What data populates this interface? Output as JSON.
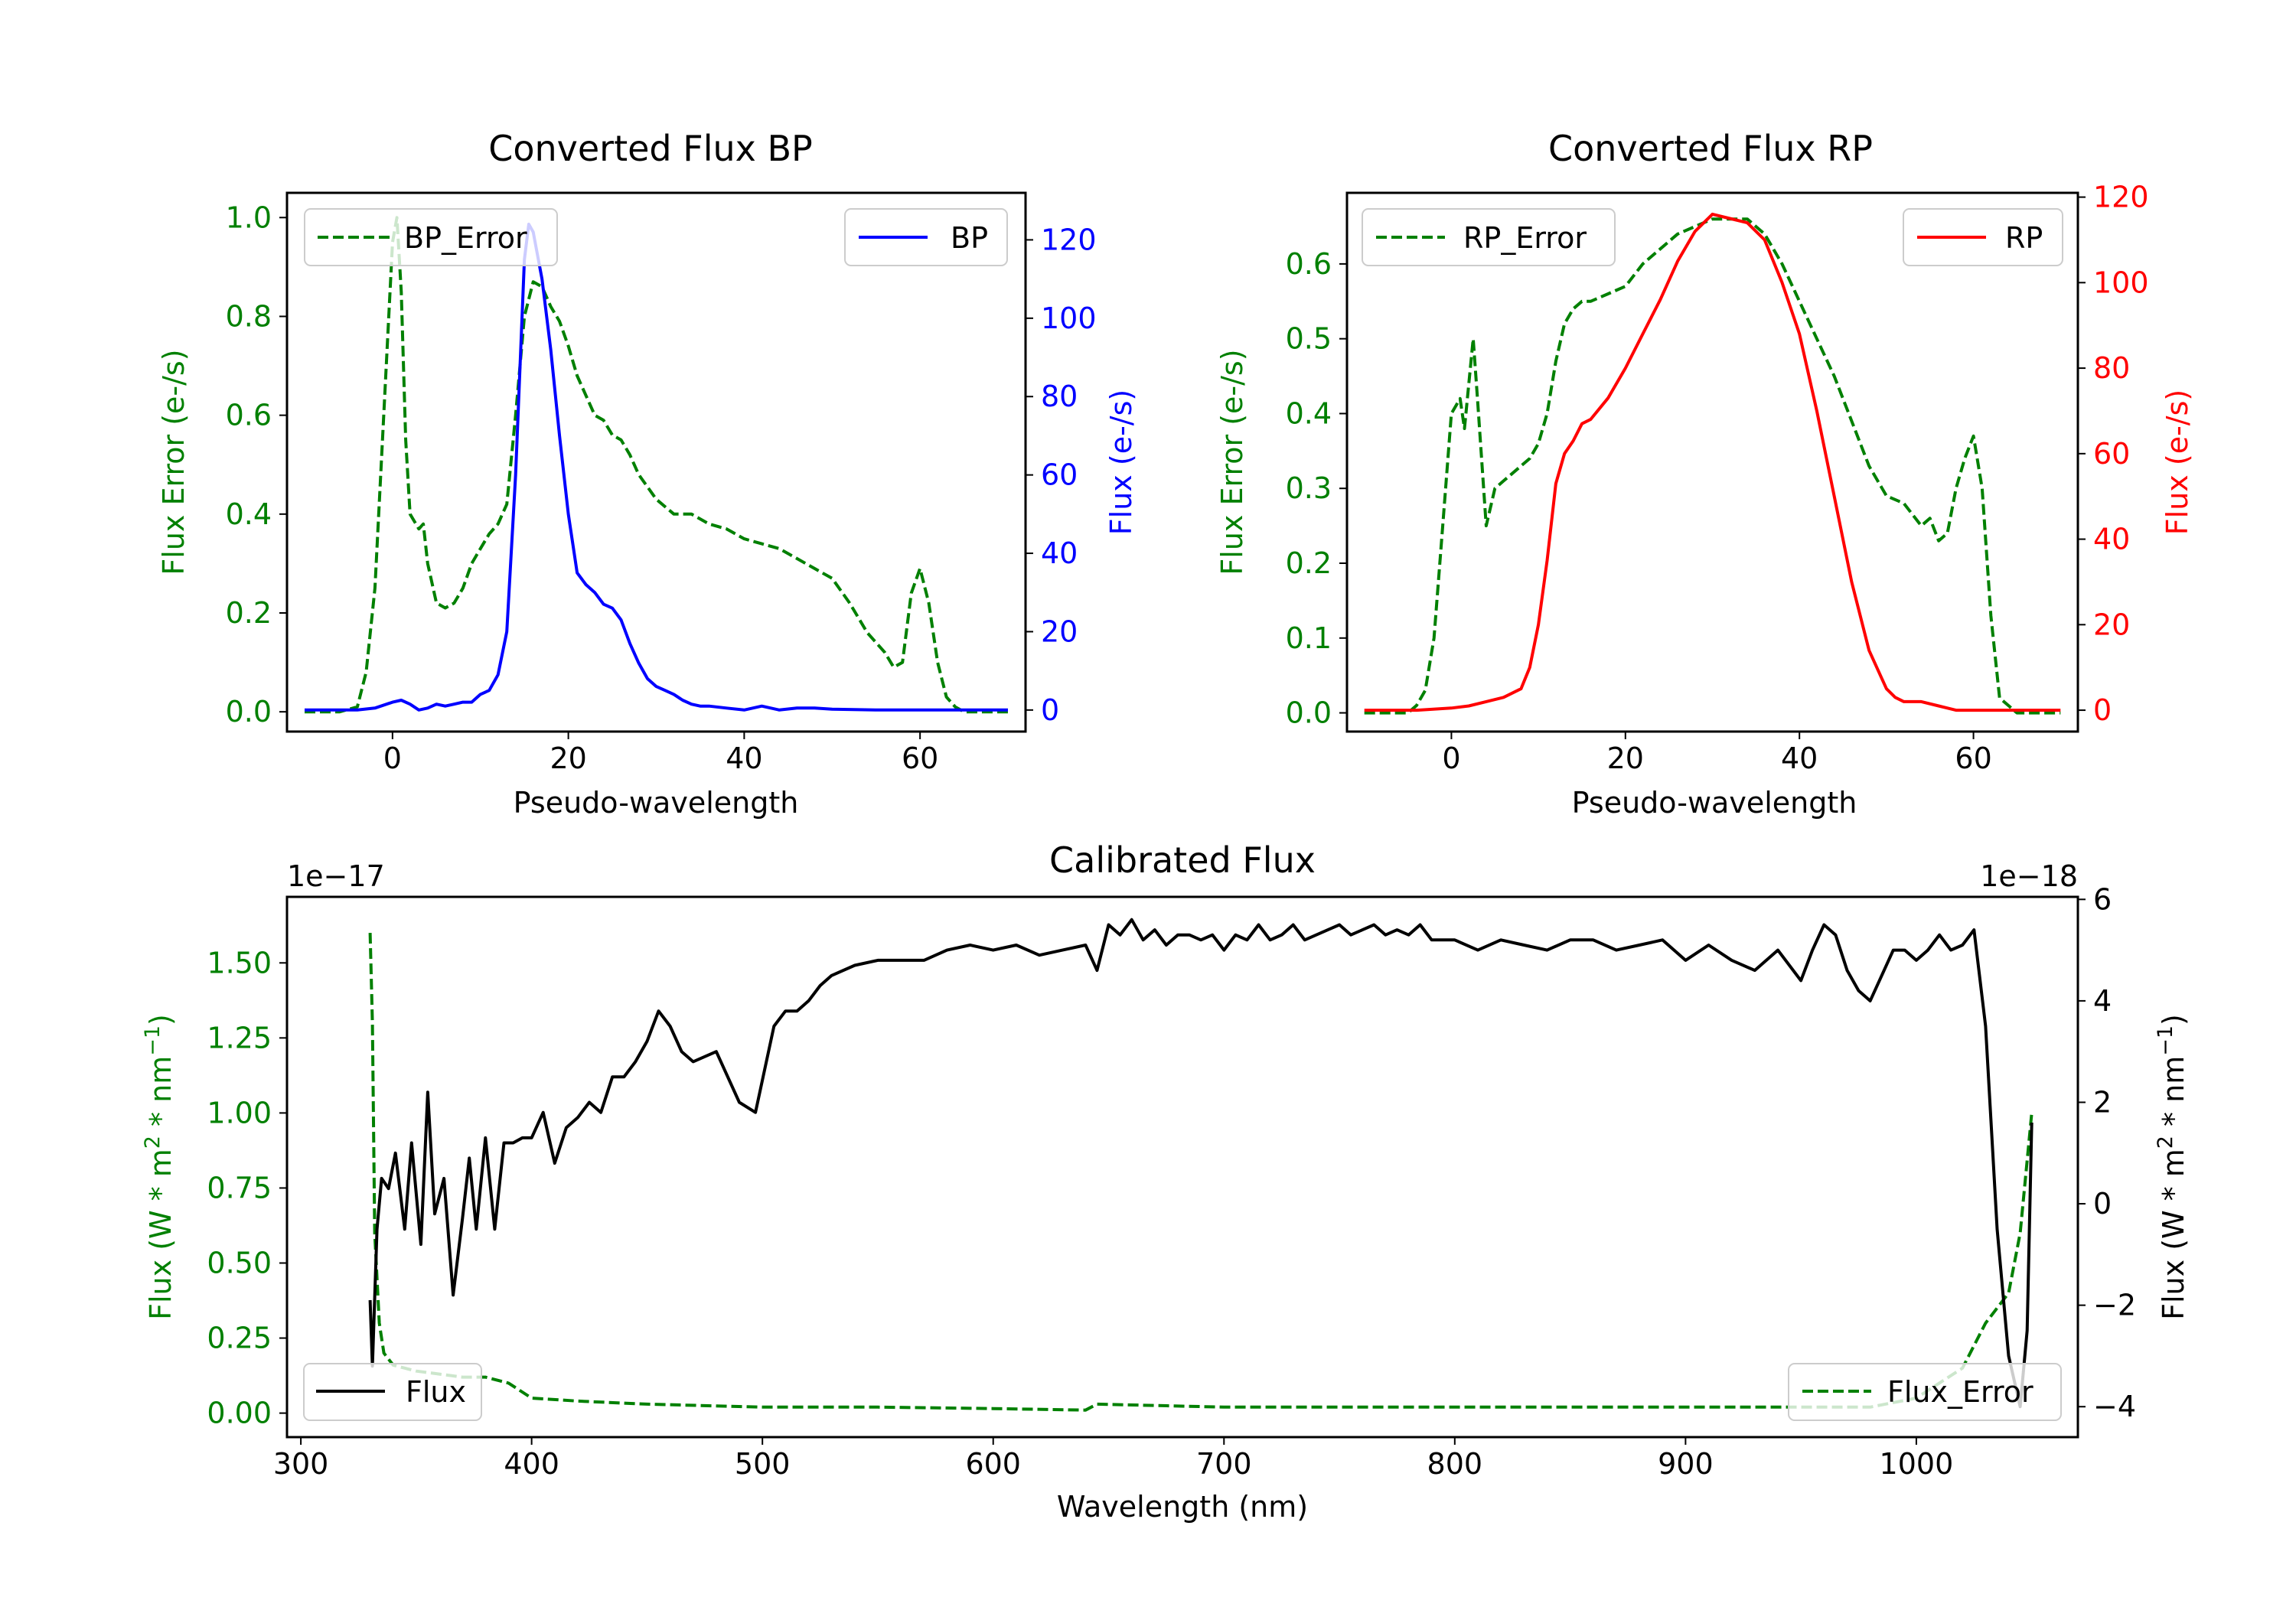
{
  "colors": {
    "green": "#008000",
    "blue": "#0000ff",
    "red": "#ff0000",
    "black": "#000000"
  },
  "chart_data": [
    {
      "id": "bp",
      "type": "line",
      "title": "Converted Flux BP",
      "xlabel": "Pseudo-wavelength",
      "ylabel_left": "Flux Error (e-/s)",
      "ylabel_right": "Flux (e-/s)",
      "xlim": [
        -12,
        72
      ],
      "ylim_left": [
        -0.04,
        1.05
      ],
      "ylim_right": [
        -5.5,
        132
      ],
      "xticks": [
        "0",
        "20",
        "40",
        "60"
      ],
      "yticks_left": [
        "0.0",
        "0.2",
        "0.4",
        "0.6",
        "0.8",
        "1.0"
      ],
      "yticks_right": [
        "0",
        "20",
        "40",
        "60",
        "80",
        "100",
        "120"
      ],
      "legend_left": "BP_Error",
      "legend_right": "BP",
      "series": [
        {
          "name": "BP_Error",
          "axis": "left",
          "style": "dashed",
          "color": "green",
          "x": [
            -10,
            -6,
            -4,
            -3,
            -2,
            -1,
            0,
            0.5,
            1,
            1.5,
            2,
            3,
            3.5,
            4,
            5,
            6,
            7,
            8,
            9,
            10,
            11,
            12,
            13,
            14,
            15,
            16,
            17,
            18,
            19,
            20,
            21,
            22,
            23,
            24,
            25,
            26,
            27,
            28,
            30,
            32,
            34,
            36,
            38,
            40,
            42,
            44,
            46,
            48,
            50,
            52,
            54,
            56,
            57,
            58,
            59,
            60,
            61,
            62,
            63,
            64,
            65,
            70
          ],
          "y": [
            0,
            0,
            0.01,
            0.08,
            0.25,
            0.6,
            0.95,
            1.0,
            0.85,
            0.55,
            0.4,
            0.37,
            0.38,
            0.3,
            0.22,
            0.21,
            0.22,
            0.25,
            0.3,
            0.33,
            0.36,
            0.38,
            0.42,
            0.6,
            0.8,
            0.87,
            0.86,
            0.82,
            0.79,
            0.74,
            0.68,
            0.64,
            0.6,
            0.59,
            0.56,
            0.55,
            0.52,
            0.48,
            0.43,
            0.4,
            0.4,
            0.38,
            0.37,
            0.35,
            0.34,
            0.33,
            0.31,
            0.29,
            0.27,
            0.22,
            0.16,
            0.12,
            0.09,
            0.1,
            0.24,
            0.29,
            0.22,
            0.1,
            0.03,
            0.01,
            0,
            0
          ]
        },
        {
          "name": "BP",
          "axis": "right",
          "style": "solid",
          "color": "blue",
          "x": [
            -10,
            -6,
            -4,
            -2,
            0,
            1,
            2,
            3,
            4,
            5,
            6,
            7,
            8,
            9,
            10,
            11,
            12,
            13,
            14,
            15,
            15.5,
            16,
            17,
            18,
            19,
            20,
            21,
            22,
            23,
            24,
            25,
            26,
            27,
            28,
            29,
            30,
            31,
            32,
            33,
            34,
            35,
            36,
            38,
            40,
            42,
            44,
            46,
            48,
            50,
            55,
            60,
            65,
            70
          ],
          "y": [
            0,
            0,
            0,
            0.5,
            2,
            2.5,
            1.5,
            0,
            0.5,
            1.5,
            1,
            1.5,
            2,
            2,
            4,
            5,
            9,
            20,
            60,
            115,
            124,
            122,
            110,
            92,
            70,
            50,
            35,
            32,
            30,
            27,
            26,
            23,
            17,
            12,
            8,
            6,
            5,
            4,
            2.5,
            1.5,
            1,
            1,
            0.5,
            0,
            1,
            0,
            0.5,
            0.5,
            0.2,
            0,
            0,
            0,
            0
          ]
        }
      ]
    },
    {
      "id": "rp",
      "type": "line",
      "title": "Converted Flux RP",
      "xlabel": "Pseudo-wavelength",
      "ylabel_left": "Flux Error (e-/s)",
      "ylabel_right": "Flux (e-/s)",
      "xlim": [
        -12,
        72
      ],
      "ylim_left": [
        -0.025,
        0.695
      ],
      "ylim_right": [
        -5,
        121
      ],
      "xticks": [
        "0",
        "20",
        "40",
        "60"
      ],
      "yticks_left": [
        "0.0",
        "0.1",
        "0.2",
        "0.3",
        "0.4",
        "0.5",
        "0.6"
      ],
      "yticks_right": [
        "0",
        "20",
        "40",
        "60",
        "80",
        "100",
        "120"
      ],
      "legend_left": "RP_Error",
      "legend_right": "RP",
      "series": [
        {
          "name": "RP_Error",
          "axis": "left",
          "style": "dashed",
          "color": "green",
          "x": [
            -10,
            -5,
            -4,
            -3,
            -2,
            -1,
            0,
            1,
            1.5,
            2,
            2.5,
            3,
            4,
            5,
            6,
            7,
            8,
            9,
            10,
            11,
            12,
            13,
            14,
            15,
            16,
            18,
            20,
            22,
            24,
            26,
            28,
            30,
            32,
            34,
            36,
            38,
            40,
            42,
            44,
            46,
            48,
            50,
            52,
            54,
            55,
            56,
            57,
            58,
            59,
            60,
            61,
            62,
            63,
            65,
            70
          ],
          "y": [
            0,
            0,
            0.01,
            0.03,
            0.1,
            0.25,
            0.4,
            0.42,
            0.38,
            0.44,
            0.5,
            0.42,
            0.25,
            0.3,
            0.31,
            0.32,
            0.33,
            0.34,
            0.36,
            0.4,
            0.47,
            0.52,
            0.54,
            0.55,
            0.55,
            0.56,
            0.57,
            0.6,
            0.62,
            0.64,
            0.65,
            0.66,
            0.66,
            0.66,
            0.64,
            0.6,
            0.55,
            0.5,
            0.45,
            0.39,
            0.33,
            0.29,
            0.28,
            0.25,
            0.26,
            0.23,
            0.24,
            0.3,
            0.34,
            0.37,
            0.3,
            0.13,
            0.02,
            0,
            0
          ]
        },
        {
          "name": "RP",
          "axis": "right",
          "style": "solid",
          "color": "red",
          "x": [
            -10,
            -4,
            0,
            2,
            4,
            6,
            8,
            9,
            10,
            11,
            12,
            13,
            14,
            15,
            16,
            18,
            20,
            22,
            24,
            26,
            28,
            30,
            32,
            34,
            36,
            38,
            40,
            42,
            44,
            46,
            48,
            50,
            51,
            52,
            54,
            56,
            58,
            60,
            65,
            70
          ],
          "y": [
            0,
            0,
            0.5,
            1,
            2,
            3,
            5,
            10,
            20,
            35,
            53,
            60,
            63,
            67,
            68,
            73,
            80,
            88,
            96,
            105,
            112,
            116,
            115,
            114,
            110,
            100,
            88,
            70,
            50,
            30,
            14,
            5,
            3,
            2,
            2,
            1,
            0,
            0,
            0,
            0
          ]
        }
      ]
    },
    {
      "id": "calibrated",
      "type": "line",
      "title": "Calibrated Flux",
      "xlabel": "Wavelength (nm)",
      "ylabel_left": "Flux (W * m",
      "ylabel_left_sup": "2",
      "ylabel_left_mid": " * nm",
      "ylabel_left_sup2": "−1",
      "ylabel_left_end": ")",
      "ylabel_right": "Flux (W * m",
      "ylabel_right_sup": "2",
      "ylabel_right_mid": " * nm",
      "ylabel_right_sup2": "−1",
      "ylabel_right_end": ")",
      "offset_left": "1e−17",
      "offset_right": "1e−18",
      "xlim": [
        294,
        1070
      ],
      "ylim_left": [
        -0.08,
        1.72
      ],
      "ylim_right": [
        -4.6,
        6.05
      ],
      "xticks": [
        "300",
        "400",
        "500",
        "600",
        "700",
        "800",
        "900",
        "1000"
      ],
      "yticks_left": [
        "0.00",
        "0.25",
        "0.50",
        "0.75",
        "1.00",
        "1.25",
        "1.50"
      ],
      "yticks_right": [
        "−4",
        "−2",
        "0",
        "2",
        "4",
        "6"
      ],
      "legend_left": "Flux",
      "legend_right": "Flux_Error",
      "series": [
        {
          "name": "Flux_Error",
          "axis": "left",
          "style": "dashed",
          "color": "green",
          "x": [
            330,
            331,
            332,
            334,
            336,
            340,
            345,
            350,
            360,
            370,
            380,
            390,
            400,
            420,
            450,
            500,
            550,
            600,
            640,
            645,
            700,
            800,
            900,
            980,
            1000,
            1020,
            1030,
            1040,
            1045,
            1050
          ],
          "y": [
            1.6,
            1.3,
            0.6,
            0.3,
            0.2,
            0.16,
            0.15,
            0.14,
            0.13,
            0.12,
            0.12,
            0.1,
            0.05,
            0.04,
            0.03,
            0.02,
            0.02,
            0.015,
            0.01,
            0.03,
            0.02,
            0.02,
            0.02,
            0.02,
            0.05,
            0.15,
            0.3,
            0.4,
            0.6,
            1.0
          ]
        },
        {
          "name": "Flux",
          "axis": "right",
          "style": "solid",
          "color": "black",
          "x": [
            330,
            331,
            333,
            335,
            338,
            341,
            345,
            348,
            352,
            355,
            358,
            362,
            366,
            370,
            373,
            376,
            380,
            384,
            388,
            392,
            396,
            400,
            405,
            410,
            415,
            420,
            425,
            430,
            435,
            440,
            445,
            450,
            455,
            460,
            465,
            470,
            480,
            490,
            497,
            505,
            510,
            515,
            520,
            525,
            530,
            540,
            550,
            560,
            570,
            580,
            590,
            600,
            610,
            620,
            630,
            640,
            645,
            650,
            655,
            660,
            665,
            670,
            675,
            680,
            685,
            690,
            695,
            700,
            705,
            710,
            715,
            720,
            725,
            730,
            735,
            740,
            745,
            750,
            755,
            760,
            765,
            770,
            775,
            780,
            785,
            790,
            795,
            800,
            810,
            820,
            830,
            840,
            850,
            860,
            870,
            880,
            890,
            900,
            910,
            920,
            930,
            940,
            950,
            955,
            960,
            965,
            970,
            975,
            980,
            985,
            990,
            995,
            1000,
            1005,
            1010,
            1015,
            1020,
            1025,
            1030,
            1035,
            1040,
            1045,
            1048,
            1050
          ],
          "y": [
            -1.9,
            -3.2,
            -0.5,
            0.5,
            0.3,
            1.0,
            -0.5,
            1.2,
            -0.8,
            2.2,
            -0.2,
            0.5,
            -1.8,
            -0.3,
            0.9,
            -0.5,
            1.3,
            -0.5,
            1.2,
            1.2,
            1.3,
            1.3,
            1.8,
            0.8,
            1.5,
            1.7,
            2.0,
            1.8,
            2.5,
            2.5,
            2.8,
            3.2,
            3.8,
            3.5,
            3.0,
            2.8,
            3.0,
            2.0,
            1.8,
            3.5,
            3.8,
            3.8,
            4.0,
            4.3,
            4.5,
            4.7,
            4.8,
            4.8,
            4.8,
            5.0,
            5.1,
            5.0,
            5.1,
            4.9,
            5.0,
            5.1,
            4.6,
            5.5,
            5.3,
            5.6,
            5.2,
            5.4,
            5.1,
            5.3,
            5.3,
            5.2,
            5.3,
            5.0,
            5.3,
            5.2,
            5.5,
            5.2,
            5.3,
            5.5,
            5.2,
            5.3,
            5.4,
            5.5,
            5.3,
            5.4,
            5.5,
            5.3,
            5.4,
            5.3,
            5.5,
            5.2,
            5.2,
            5.2,
            5.0,
            5.2,
            5.1,
            5.0,
            5.2,
            5.2,
            5.0,
            5.1,
            5.2,
            4.8,
            5.1,
            4.8,
            4.6,
            5.0,
            4.4,
            5.0,
            5.5,
            5.3,
            4.6,
            4.2,
            4.0,
            4.5,
            5.0,
            5.0,
            4.8,
            5.0,
            5.3,
            5.0,
            5.1,
            5.4,
            3.5,
            -0.5,
            -3.0,
            -4.0,
            -2.5,
            1.6
          ]
        }
      ]
    }
  ]
}
